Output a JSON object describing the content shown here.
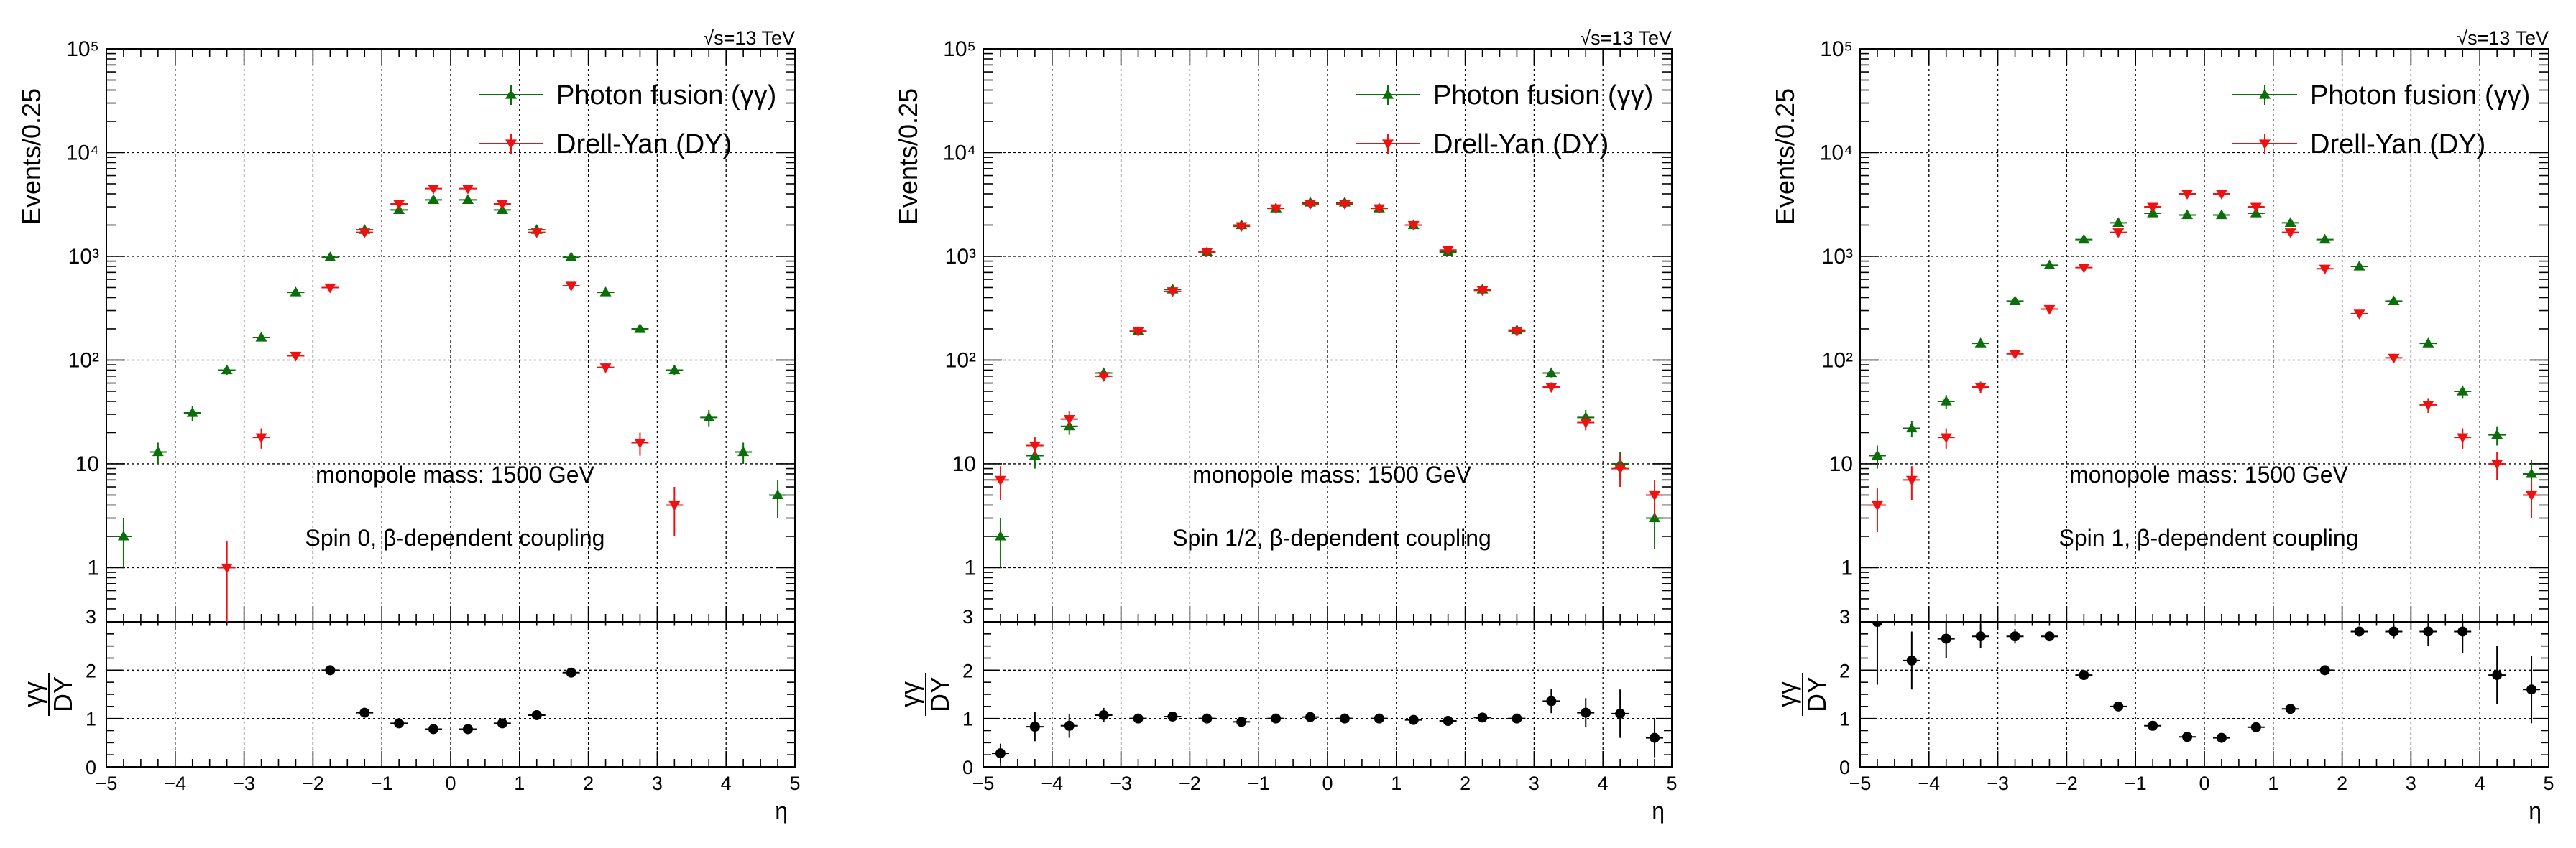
{
  "chart_data": [
    {
      "type": "scatter",
      "energy_label": "√s=13 TeV",
      "ylabel_top": "Events/0.25",
      "ratio_label_num": "γγ",
      "ratio_label_den": "DY",
      "xlabel": "η",
      "xlim": [
        -5,
        5
      ],
      "ylim_top": [
        0.3,
        100000
      ],
      "ylog": true,
      "ylim_ratio": [
        0,
        3
      ],
      "grid": true,
      "legend_position": "top-right",
      "annotation_mass": "monopole mass: 1500 GeV",
      "annotation_spin": "Spin 0, β-dependent coupling",
      "x_ticks": [
        "−5",
        "−4",
        "−3",
        "−2",
        "−1",
        "0",
        "1",
        "2",
        "3",
        "4",
        "5"
      ],
      "y_ticks_top": [
        "1",
        "10",
        "10²",
        "10³",
        "10⁴",
        "10⁵"
      ],
      "y_ticks_ratio": [
        "0",
        "1",
        "2",
        "3"
      ],
      "series": [
        {
          "name": "Photon fusion (γγ)",
          "color": "#0a6e0a",
          "marker": "triangle-up",
          "x": [
            -4.75,
            -4.25,
            -3.75,
            -3.25,
            -2.75,
            -2.25,
            -1.75,
            -1.25,
            -0.75,
            -0.25,
            0.25,
            0.75,
            1.25,
            1.75,
            2.25,
            2.75,
            3.25,
            3.75,
            4.25,
            4.75
          ],
          "y": [
            2,
            13,
            31,
            80,
            165,
            450,
            980,
            1800,
            2800,
            3500,
            3500,
            2800,
            1800,
            980,
            450,
            200,
            80,
            28,
            13,
            5
          ],
          "err": [
            1,
            3,
            5,
            8,
            13,
            20,
            30,
            40,
            50,
            60,
            60,
            50,
            40,
            30,
            20,
            14,
            8,
            5,
            3,
            2
          ]
        },
        {
          "name": "Drell-Yan (DY)",
          "color": "#ee1111",
          "marker": "triangle-down",
          "x": [
            -3.25,
            -2.75,
            -2.25,
            -1.75,
            -1.25,
            -0.75,
            -0.25,
            0.25,
            0.75,
            1.25,
            1.75,
            2.25,
            2.75,
            3.25
          ],
          "y": [
            1,
            18,
            110,
            500,
            1700,
            3200,
            4500,
            4500,
            3200,
            1700,
            520,
            85,
            16,
            4
          ],
          "err": [
            0.8,
            4,
            10,
            22,
            40,
            55,
            65,
            65,
            55,
            40,
            22,
            9,
            4,
            2
          ]
        }
      ],
      "ratio": {
        "x": [
          -1.75,
          -1.25,
          -0.75,
          -0.25,
          0.25,
          0.75,
          1.25,
          1.75
        ],
        "y": [
          2.0,
          1.12,
          0.9,
          0.78,
          0.78,
          0.9,
          1.07,
          1.95
        ],
        "err": [
          0.05,
          0.04,
          0.03,
          0.03,
          0.03,
          0.03,
          0.04,
          0.05
        ]
      }
    },
    {
      "type": "scatter",
      "energy_label": "√s=13 TeV",
      "ylabel_top": "Events/0.25",
      "ratio_label_num": "γγ",
      "ratio_label_den": "DY",
      "xlabel": "η",
      "xlim": [
        -5,
        5
      ],
      "ylim_top": [
        0.3,
        100000
      ],
      "ylog": true,
      "ylim_ratio": [
        0,
        3
      ],
      "grid": true,
      "legend_position": "top-right",
      "annotation_mass": "monopole mass: 1500 GeV",
      "annotation_spin": "Spin 1/2, β-dependent coupling",
      "x_ticks": [
        "−5",
        "−4",
        "−3",
        "−2",
        "−1",
        "0",
        "1",
        "2",
        "3",
        "4",
        "5"
      ],
      "y_ticks_top": [
        "1",
        "10",
        "10²",
        "10³",
        "10⁴",
        "10⁵"
      ],
      "y_ticks_ratio": [
        "0",
        "1",
        "2",
        "3"
      ],
      "series": [
        {
          "name": "Photon fusion (γγ)",
          "color": "#0a6e0a",
          "marker": "triangle-up",
          "x": [
            -4.75,
            -4.25,
            -3.75,
            -3.25,
            -2.75,
            -2.25,
            -1.75,
            -1.25,
            -0.75,
            -0.25,
            0.25,
            0.75,
            1.25,
            1.75,
            2.25,
            2.75,
            3.25,
            3.75,
            4.25,
            4.75
          ],
          "y": [
            2,
            12,
            23,
            75,
            190,
            480,
            1100,
            2000,
            2900,
            3300,
            3300,
            2900,
            2000,
            1100,
            480,
            195,
            75,
            28,
            10,
            3
          ],
          "err": [
            1,
            3,
            4,
            7,
            13,
            22,
            33,
            45,
            54,
            58,
            58,
            54,
            45,
            33,
            22,
            14,
            7,
            5,
            3,
            1.5
          ]
        },
        {
          "name": "Drell-Yan (DY)",
          "color": "#ee1111",
          "marker": "triangle-down",
          "x": [
            -4.75,
            -4.25,
            -3.75,
            -3.25,
            -2.75,
            -2.25,
            -1.75,
            -1.25,
            -0.75,
            -0.25,
            0.25,
            0.75,
            1.25,
            1.75,
            2.25,
            2.75,
            3.25,
            3.75,
            4.25,
            4.75
          ],
          "y": [
            7,
            15,
            27,
            70,
            190,
            460,
            1100,
            1950,
            2900,
            3200,
            3200,
            2900,
            2000,
            1150,
            470,
            190,
            55,
            25,
            9,
            5
          ],
          "err": [
            2.5,
            3,
            5,
            7,
            13,
            21,
            33,
            44,
            54,
            57,
            57,
            54,
            45,
            34,
            22,
            14,
            6,
            4,
            3,
            2
          ]
        }
      ],
      "ratio": {
        "x": [
          -4.75,
          -4.25,
          -3.75,
          -3.25,
          -2.75,
          -2.25,
          -1.75,
          -1.25,
          -0.75,
          -0.25,
          0.25,
          0.75,
          1.25,
          1.75,
          2.25,
          2.75,
          3.25,
          3.75,
          4.25,
          4.75
        ],
        "y": [
          0.28,
          0.83,
          0.85,
          1.07,
          1.0,
          1.04,
          1.0,
          0.93,
          1.0,
          1.03,
          1.0,
          1.0,
          0.97,
          0.95,
          1.02,
          1.0,
          1.36,
          1.12,
          1.1,
          0.6
        ],
        "err": [
          0.2,
          0.3,
          0.25,
          0.15,
          0.1,
          0.06,
          0.04,
          0.03,
          0.03,
          0.03,
          0.03,
          0.03,
          0.03,
          0.04,
          0.06,
          0.1,
          0.25,
          0.3,
          0.5,
          0.4
        ]
      }
    },
    {
      "type": "scatter",
      "energy_label": "√s=13 TeV",
      "ylabel_top": "Events/0.25",
      "ratio_label_num": "γγ",
      "ratio_label_den": "DY",
      "xlabel": "η",
      "xlim": [
        -5,
        5
      ],
      "ylim_top": [
        0.3,
        100000
      ],
      "ylog": true,
      "ylim_ratio": [
        0,
        3
      ],
      "grid": true,
      "legend_position": "top-right",
      "annotation_mass": "monopole mass: 1500 GeV",
      "annotation_spin": "Spin 1, β-dependent coupling",
      "x_ticks": [
        "−5",
        "−4",
        "−3",
        "−2",
        "−1",
        "0",
        "1",
        "2",
        "3",
        "4",
        "5"
      ],
      "y_ticks_top": [
        "1",
        "10",
        "10²",
        "10³",
        "10⁴",
        "10⁵"
      ],
      "y_ticks_ratio": [
        "0",
        "1",
        "2",
        "3"
      ],
      "series": [
        {
          "name": "Photon fusion (γγ)",
          "color": "#0a6e0a",
          "marker": "triangle-up",
          "x": [
            -4.75,
            -4.25,
            -3.75,
            -3.25,
            -2.75,
            -2.25,
            -1.75,
            -1.25,
            -0.75,
            -0.25,
            0.25,
            0.75,
            1.25,
            1.75,
            2.25,
            2.75,
            3.25,
            3.75,
            4.25,
            4.75
          ],
          "y": [
            12,
            22,
            40,
            145,
            370,
            820,
            1450,
            2100,
            2600,
            2500,
            2500,
            2600,
            2100,
            1450,
            800,
            370,
            145,
            50,
            19,
            8
          ],
          "err": [
            3,
            4,
            6,
            12,
            19,
            28,
            38,
            46,
            50,
            50,
            50,
            50,
            46,
            38,
            28,
            19,
            12,
            7,
            4,
            3
          ]
        },
        {
          "name": "Drell-Yan (DY)",
          "color": "#ee1111",
          "marker": "triangle-down",
          "x": [
            -4.75,
            -4.25,
            -3.75,
            -3.25,
            -2.75,
            -2.25,
            -1.75,
            -1.25,
            -0.75,
            -0.25,
            0.25,
            0.75,
            1.25,
            1.75,
            2.25,
            2.75,
            3.25,
            3.75,
            4.25,
            4.75
          ],
          "y": [
            4,
            7,
            18,
            55,
            115,
            310,
            780,
            1700,
            3000,
            4000,
            4000,
            3000,
            1700,
            760,
            280,
            105,
            37,
            18,
            10,
            5
          ],
          "err": [
            1.8,
            2.5,
            4,
            7,
            11,
            18,
            28,
            41,
            55,
            63,
            63,
            55,
            41,
            28,
            17,
            10,
            6,
            4,
            3,
            2
          ]
        }
      ],
      "ratio": {
        "x": [
          -4.75,
          -4.25,
          -3.75,
          -3.25,
          -2.75,
          -2.25,
          -1.75,
          -1.25,
          -0.75,
          -0.25,
          0.25,
          0.75,
          1.25,
          1.75,
          2.25,
          2.75,
          3.25,
          3.75,
          4.25,
          4.75
        ],
        "y": [
          3.0,
          2.2,
          2.65,
          2.7,
          2.7,
          2.7,
          1.9,
          1.25,
          0.85,
          0.62,
          0.6,
          0.82,
          1.2,
          2.0,
          2.8,
          2.8,
          2.8,
          2.8,
          1.9,
          1.6
        ],
        "err": [
          1.3,
          0.6,
          0.4,
          0.25,
          0.15,
          0.1,
          0.05,
          0.04,
          0.03,
          0.03,
          0.03,
          0.03,
          0.04,
          0.06,
          0.1,
          0.15,
          0.3,
          0.45,
          0.6,
          0.7
        ]
      }
    }
  ]
}
